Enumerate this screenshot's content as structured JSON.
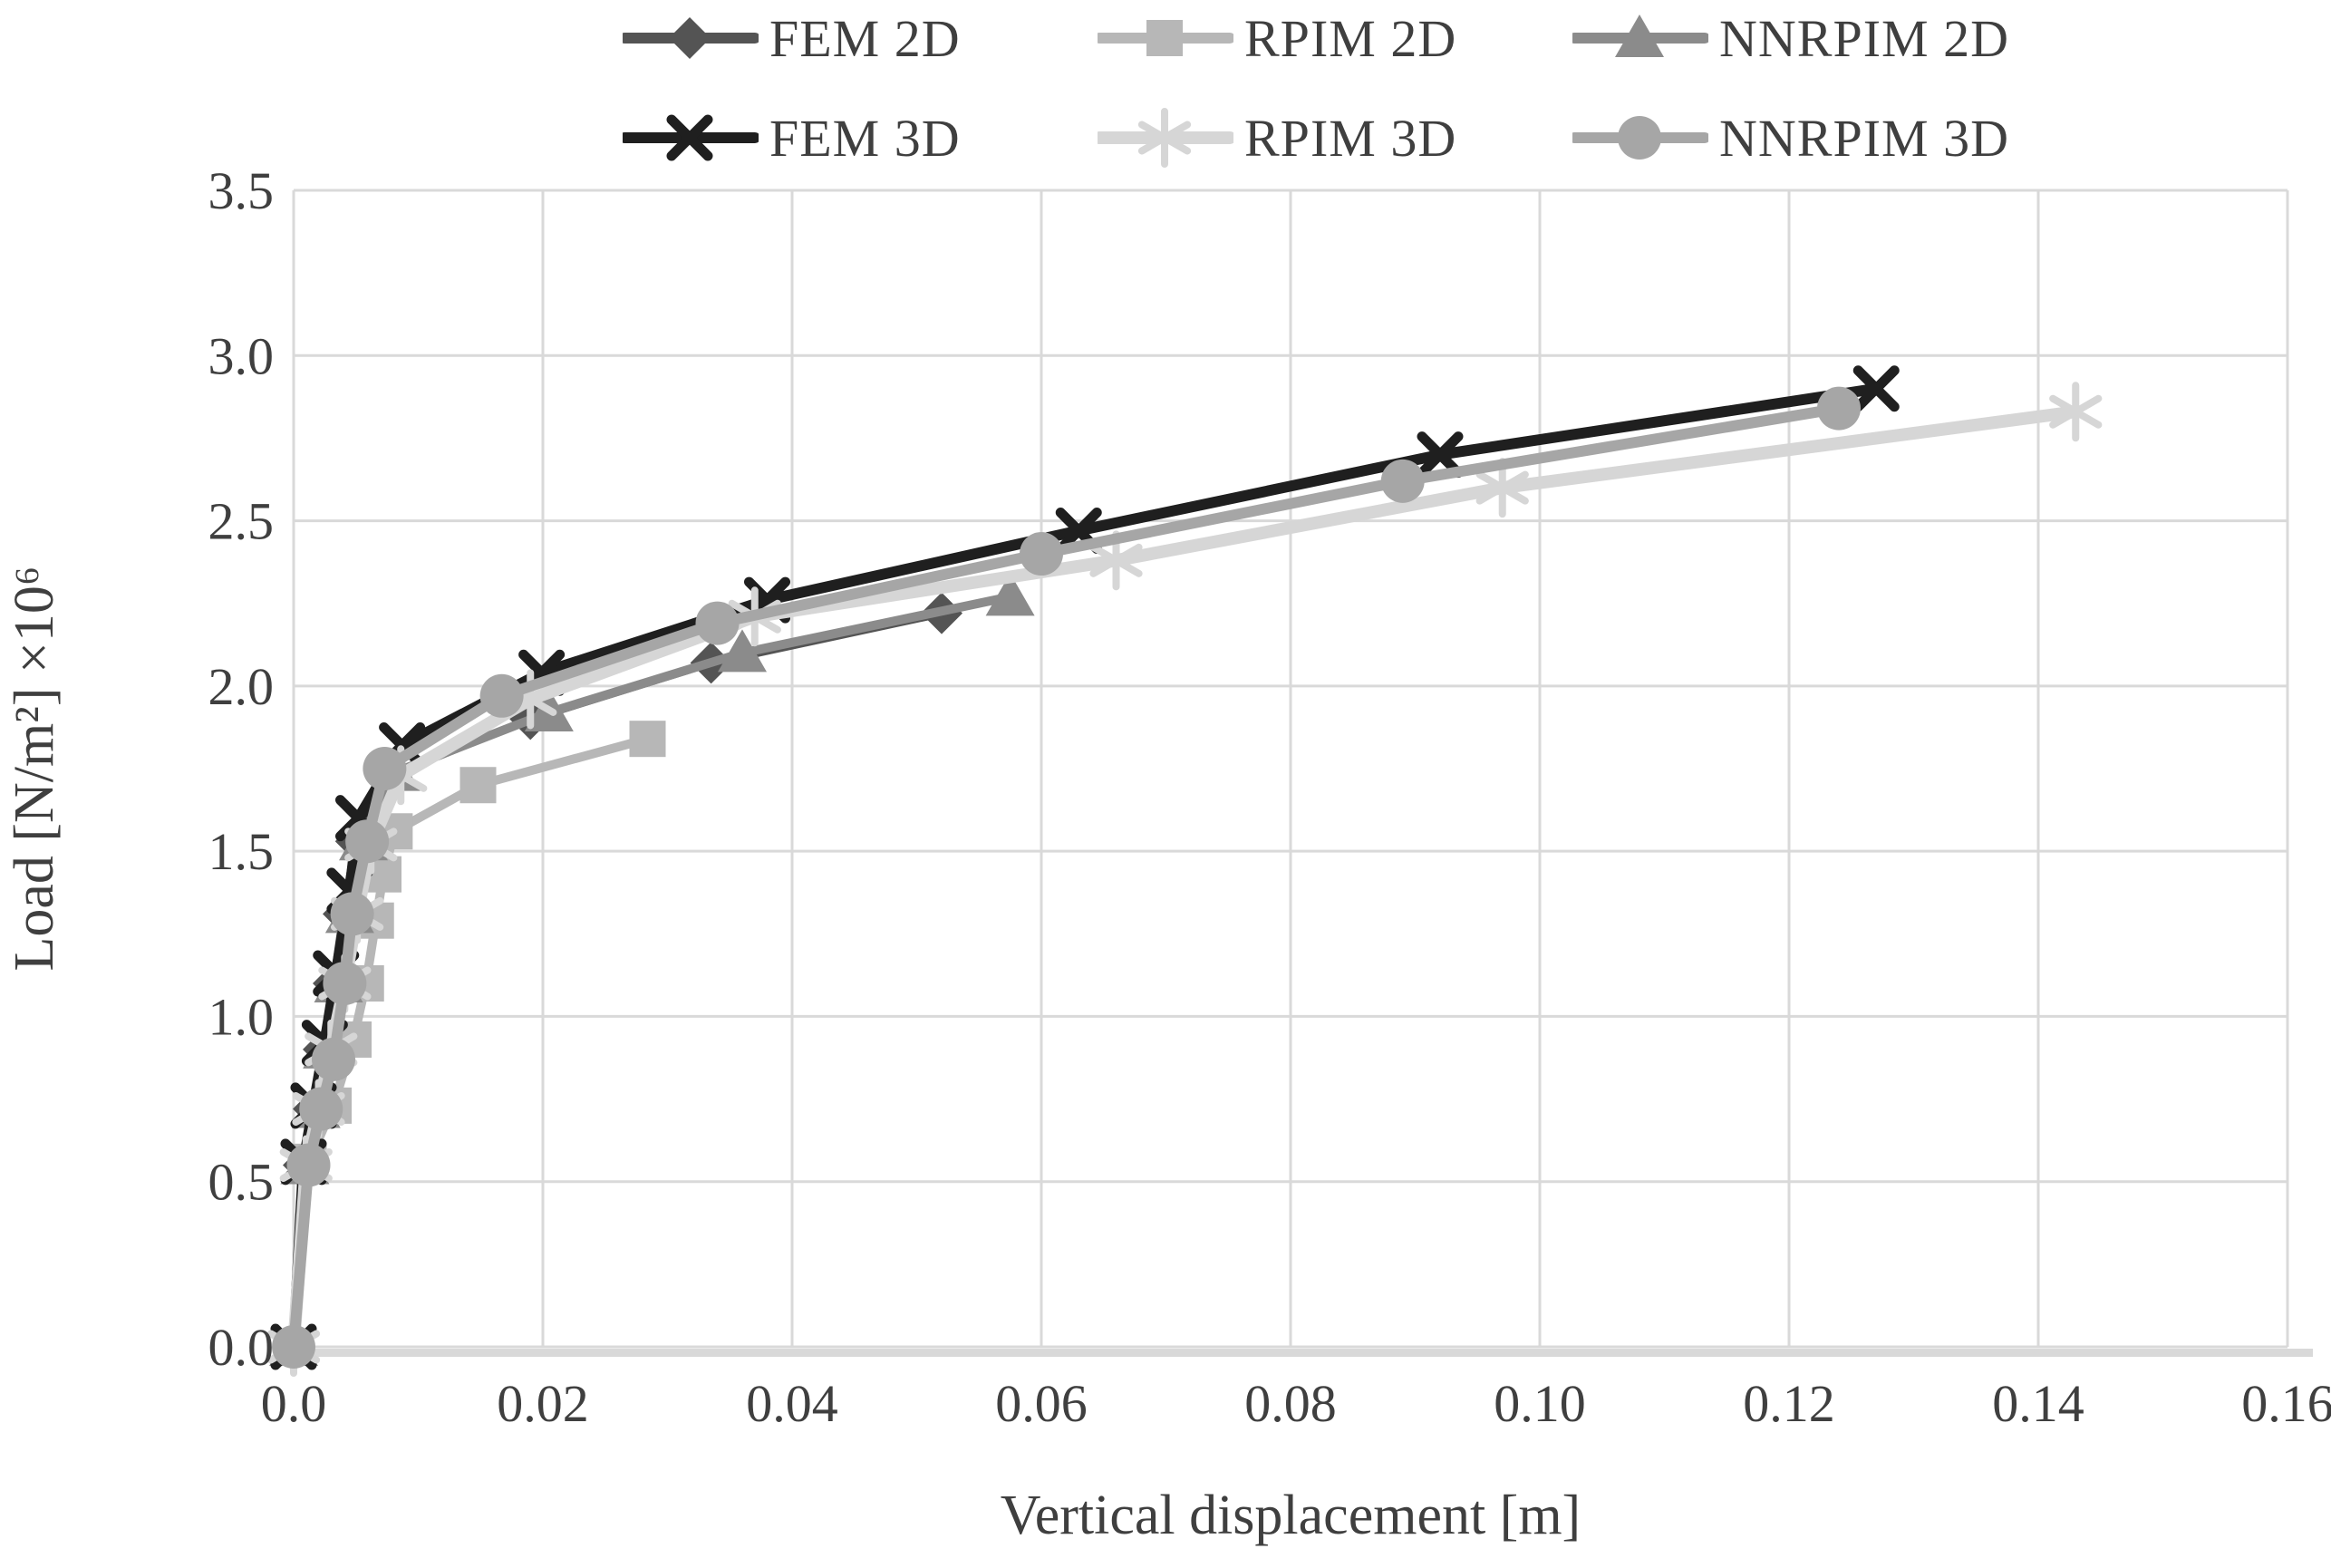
{
  "chart_data": {
    "type": "line",
    "title": "",
    "xlabel": "Vertical displacement [m]",
    "ylabel": "Load [N/m²] ×10⁶",
    "xlim": [
      0,
      0.16
    ],
    "ylim": [
      0,
      3.5
    ],
    "grid": true,
    "legend_position": "top",
    "legend_columns": 3,
    "x_ticks": {
      "values": [
        0,
        0.02,
        0.04,
        0.06,
        0.08,
        0.1,
        0.12,
        0.14,
        0.16
      ],
      "labels": [
        "0.0",
        "0.02",
        "0.04",
        "0.06",
        "0.08",
        "0.10",
        "0.12",
        "0.14",
        "0.16"
      ]
    },
    "y_ticks": {
      "values": [
        0,
        0.5,
        1.0,
        1.5,
        2.0,
        2.5,
        3.0,
        3.5
      ],
      "labels": [
        "0.0",
        "0.5",
        "1.0",
        "1.5",
        "2.0",
        "2.5",
        "3.0",
        "3.5"
      ]
    },
    "series": [
      {
        "name": "FEM 2D",
        "marker": "diamond",
        "color": "#545454",
        "line_width": 9,
        "points": [
          [
            0,
            0
          ],
          [
            0.0008,
            0.55
          ],
          [
            0.0016,
            0.72
          ],
          [
            0.0024,
            0.9
          ],
          [
            0.0032,
            1.1
          ],
          [
            0.004,
            1.31
          ],
          [
            0.005,
            1.53
          ],
          [
            0.0078,
            1.73
          ],
          [
            0.019,
            1.9
          ],
          [
            0.0335,
            2.07
          ],
          [
            0.052,
            2.22
          ]
        ]
      },
      {
        "name": "RPIM 2D",
        "marker": "square",
        "color": "#b7b7b7",
        "line_width": 10,
        "points": [
          [
            0,
            0
          ],
          [
            0.0012,
            0.56
          ],
          [
            0.0032,
            0.73
          ],
          [
            0.0048,
            0.93
          ],
          [
            0.0058,
            1.1
          ],
          [
            0.0066,
            1.29
          ],
          [
            0.0072,
            1.43
          ],
          [
            0.0081,
            1.56
          ],
          [
            0.0148,
            1.7
          ],
          [
            0.0284,
            1.84
          ]
        ]
      },
      {
        "name": "NNRPIM 2D",
        "marker": "triangle",
        "color": "#8b8b8b",
        "line_width": 10,
        "points": [
          [
            0,
            0
          ],
          [
            0.0009,
            0.55
          ],
          [
            0.0018,
            0.72
          ],
          [
            0.0027,
            0.9
          ],
          [
            0.0036,
            1.1
          ],
          [
            0.0045,
            1.31
          ],
          [
            0.0056,
            1.53
          ],
          [
            0.0082,
            1.74
          ],
          [
            0.0205,
            1.92
          ],
          [
            0.036,
            2.1
          ],
          [
            0.0575,
            2.27
          ]
        ]
      },
      {
        "name": "FEM 3D",
        "marker": "x",
        "color": "#1f1f1f",
        "line_width": 12,
        "points": [
          [
            0,
            0
          ],
          [
            0.0008,
            0.56
          ],
          [
            0.0016,
            0.73
          ],
          [
            0.0025,
            0.92
          ],
          [
            0.0034,
            1.13
          ],
          [
            0.0045,
            1.38
          ],
          [
            0.0052,
            1.6
          ],
          [
            0.0087,
            1.82
          ],
          [
            0.0199,
            2.04
          ],
          [
            0.038,
            2.26
          ],
          [
            0.063,
            2.47
          ],
          [
            0.092,
            2.7
          ],
          [
            0.127,
            2.9
          ]
        ]
      },
      {
        "name": "RPIM 3D",
        "marker": "asterisk",
        "color": "#d6d6d6",
        "line_width": 14,
        "points": [
          [
            0,
            0
          ],
          [
            0.001,
            0.55
          ],
          [
            0.002,
            0.72
          ],
          [
            0.003,
            0.9
          ],
          [
            0.0041,
            1.1
          ],
          [
            0.0051,
            1.31
          ],
          [
            0.0062,
            1.52
          ],
          [
            0.0086,
            1.73
          ],
          [
            0.019,
            1.96
          ],
          [
            0.037,
            2.21
          ],
          [
            0.066,
            2.38
          ],
          [
            0.097,
            2.6
          ],
          [
            0.143,
            2.83
          ]
        ]
      },
      {
        "name": "NNRPIM 3D",
        "marker": "circle",
        "color": "#a6a6a6",
        "line_width": 12,
        "points": [
          [
            0,
            0
          ],
          [
            0.0012,
            0.55
          ],
          [
            0.0022,
            0.72
          ],
          [
            0.0032,
            0.87
          ],
          [
            0.0041,
            1.1
          ],
          [
            0.0047,
            1.31
          ],
          [
            0.0059,
            1.53
          ],
          [
            0.0073,
            1.75
          ],
          [
            0.0167,
            1.97
          ],
          [
            0.034,
            2.19
          ],
          [
            0.06,
            2.4
          ],
          [
            0.089,
            2.62
          ],
          [
            0.124,
            2.84
          ]
        ]
      }
    ]
  },
  "colors": {
    "grid": "#d9d9d9",
    "axis_line": "#d9d9d9",
    "text": "#3f3f3f",
    "background": "#ffffff"
  }
}
